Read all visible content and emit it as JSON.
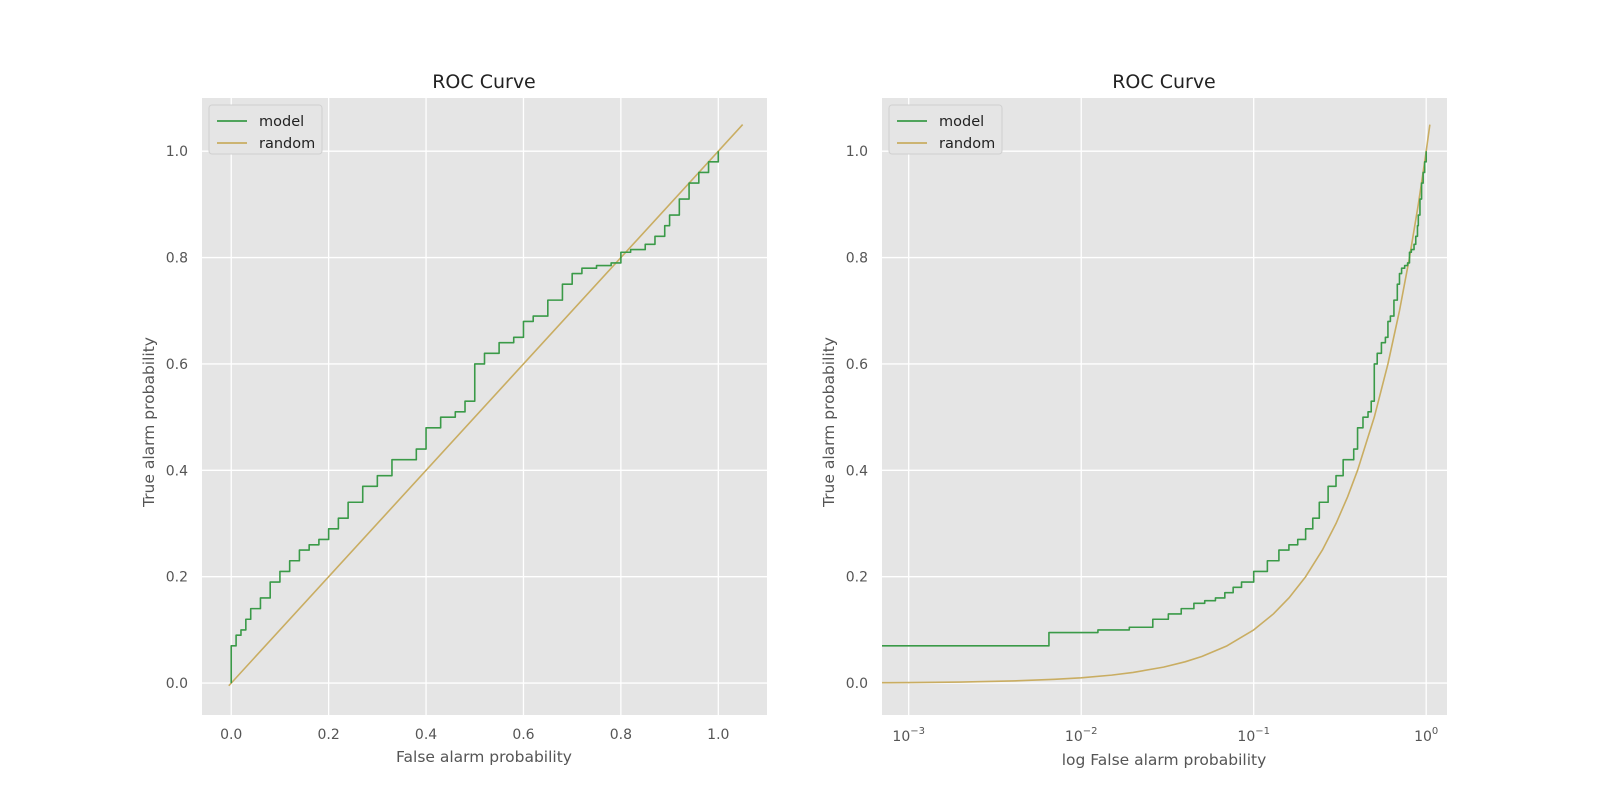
{
  "colors": {
    "model": "#3a9a48",
    "random": "#c9ad62",
    "axes_bg": "#e5e5e5",
    "grid": "#ffffff",
    "text": "#555555",
    "title": "#222222"
  },
  "chart_data": [
    {
      "type": "line",
      "title": "ROC Curve",
      "xlabel": "False alarm probability",
      "ylabel": "True alarm probability",
      "xscale": "linear",
      "yscale": "linear",
      "xlim": [
        -0.06,
        1.1
      ],
      "ylim": [
        -0.06,
        1.1
      ],
      "xticks": [
        0.0,
        0.2,
        0.4,
        0.6,
        0.8,
        1.0
      ],
      "xtick_labels": [
        "0.0",
        "0.2",
        "0.4",
        "0.6",
        "0.8",
        "1.0"
      ],
      "yticks": [
        0.0,
        0.2,
        0.4,
        0.6,
        0.8,
        1.0
      ],
      "ytick_labels": [
        "0.0",
        "0.2",
        "0.4",
        "0.6",
        "0.8",
        "1.0"
      ],
      "grid": true,
      "legend": "upper left",
      "series": [
        {
          "name": "model",
          "style": "step",
          "color": "#3a9a48",
          "x": [
            0.0,
            0.0,
            0.01,
            0.02,
            0.03,
            0.04,
            0.06,
            0.08,
            0.1,
            0.12,
            0.14,
            0.16,
            0.18,
            0.2,
            0.22,
            0.24,
            0.27,
            0.3,
            0.33,
            0.35,
            0.38,
            0.4,
            0.43,
            0.46,
            0.48,
            0.5,
            0.52,
            0.55,
            0.58,
            0.6,
            0.62,
            0.65,
            0.68,
            0.7,
            0.72,
            0.75,
            0.78,
            0.8,
            0.82,
            0.85,
            0.87,
            0.89,
            0.9,
            0.92,
            0.94,
            0.96,
            0.98,
            1.0
          ],
          "y": [
            0.0,
            0.07,
            0.09,
            0.1,
            0.12,
            0.14,
            0.16,
            0.19,
            0.21,
            0.23,
            0.25,
            0.26,
            0.27,
            0.29,
            0.31,
            0.34,
            0.37,
            0.39,
            0.42,
            0.42,
            0.44,
            0.48,
            0.5,
            0.51,
            0.53,
            0.6,
            0.62,
            0.64,
            0.65,
            0.68,
            0.69,
            0.72,
            0.75,
            0.77,
            0.78,
            0.785,
            0.79,
            0.81,
            0.815,
            0.825,
            0.84,
            0.86,
            0.88,
            0.91,
            0.94,
            0.96,
            0.98,
            1.0
          ]
        },
        {
          "name": "random",
          "style": "line",
          "color": "#c9ad62",
          "x": [
            -0.005,
            1.05
          ],
          "y": [
            -0.005,
            1.05
          ]
        }
      ]
    },
    {
      "type": "line",
      "title": "ROC Curve",
      "xlabel": "log False alarm probability",
      "ylabel": "True alarm probability",
      "xscale": "log",
      "yscale": "linear",
      "xlim": [
        0.0007,
        1.32
      ],
      "ylim": [
        -0.06,
        1.1
      ],
      "xticks": [
        0.001,
        0.01,
        0.1,
        1
      ],
      "xtick_labels": [
        {
          "base": "10",
          "exp": "−3"
        },
        {
          "base": "10",
          "exp": "−2"
        },
        {
          "base": "10",
          "exp": "−1"
        },
        {
          "base": "10",
          "exp": "0"
        }
      ],
      "yticks": [
        0.0,
        0.2,
        0.4,
        0.6,
        0.8,
        1.0
      ],
      "ytick_labels": [
        "0.0",
        "0.2",
        "0.4",
        "0.6",
        "0.8",
        "1.0"
      ],
      "grid": true,
      "legend": "upper left",
      "series": [
        {
          "name": "model",
          "style": "step",
          "color": "#3a9a48",
          "x": [
            0.0007,
            0.0065,
            0.0125,
            0.019,
            0.026,
            0.032,
            0.038,
            0.045,
            0.052,
            0.06,
            0.068,
            0.076,
            0.085,
            0.1,
            0.12,
            0.14,
            0.16,
            0.18,
            0.2,
            0.22,
            0.24,
            0.27,
            0.3,
            0.33,
            0.35,
            0.38,
            0.4,
            0.43,
            0.46,
            0.48,
            0.5,
            0.52,
            0.55,
            0.58,
            0.6,
            0.62,
            0.65,
            0.68,
            0.7,
            0.72,
            0.75,
            0.78,
            0.8,
            0.82,
            0.85,
            0.87,
            0.89,
            0.9,
            0.92,
            0.94,
            0.96,
            0.98,
            1.0
          ],
          "y": [
            0.07,
            0.095,
            0.1,
            0.105,
            0.12,
            0.13,
            0.14,
            0.15,
            0.155,
            0.16,
            0.17,
            0.18,
            0.19,
            0.21,
            0.23,
            0.25,
            0.26,
            0.27,
            0.29,
            0.31,
            0.34,
            0.37,
            0.39,
            0.42,
            0.42,
            0.44,
            0.48,
            0.5,
            0.51,
            0.53,
            0.6,
            0.62,
            0.64,
            0.65,
            0.68,
            0.69,
            0.72,
            0.75,
            0.77,
            0.78,
            0.785,
            0.79,
            0.81,
            0.815,
            0.825,
            0.84,
            0.86,
            0.88,
            0.91,
            0.94,
            0.96,
            0.98,
            1.0
          ]
        },
        {
          "name": "random",
          "style": "line",
          "color": "#c9ad62",
          "x": [
            0.0007,
            0.001,
            0.002,
            0.004,
            0.007,
            0.01,
            0.015,
            0.02,
            0.03,
            0.04,
            0.05,
            0.07,
            0.1,
            0.13,
            0.16,
            0.2,
            0.25,
            0.3,
            0.35,
            0.4,
            0.5,
            0.6,
            0.7,
            0.8,
            0.9,
            1.0,
            1.05
          ],
          "y": [
            0.0007,
            0.001,
            0.002,
            0.004,
            0.007,
            0.01,
            0.015,
            0.02,
            0.03,
            0.04,
            0.05,
            0.07,
            0.1,
            0.13,
            0.16,
            0.2,
            0.25,
            0.3,
            0.35,
            0.4,
            0.5,
            0.6,
            0.7,
            0.8,
            0.9,
            1.0,
            1.05
          ]
        }
      ]
    }
  ]
}
